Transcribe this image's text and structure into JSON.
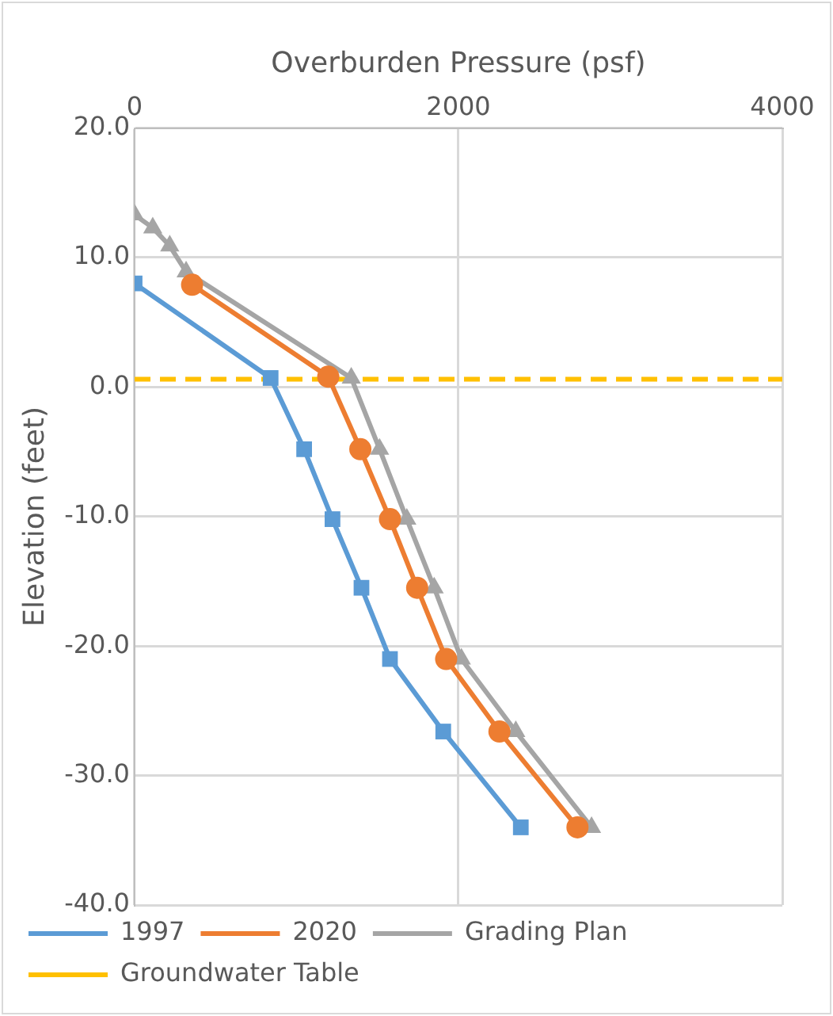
{
  "chart_data": {
    "type": "line",
    "xlabel": "Overburden Pressure (psf)",
    "ylabel": "Elevation (feet)",
    "xlim": [
      0,
      4000
    ],
    "xticks": [
      0,
      2000,
      4000
    ],
    "ylim": [
      -40,
      20
    ],
    "yticks": [
      {
        "value": -40,
        "label": "-40.0"
      },
      {
        "value": -30,
        "label": "-30.0"
      },
      {
        "value": -20,
        "label": "-20.0"
      },
      {
        "value": -10,
        "label": "-10.0"
      },
      {
        "value": 0,
        "label": "0.0"
      },
      {
        "value": 10,
        "label": "10.0"
      },
      {
        "value": 20,
        "label": "20.0"
      }
    ],
    "grid": true,
    "legend": "bottom",
    "line_style": "solid",
    "series": [
      {
        "name": "1997",
        "color": "#5b9bd5",
        "marker": "square",
        "x": [
          0,
          840,
          1047,
          1222,
          1401,
          1577,
          1906,
          2385
        ],
        "values": [
          8.0,
          0.7,
          -4.8,
          -10.2,
          -15.5,
          -21.0,
          -26.6,
          -34.0
        ]
      },
      {
        "name": "2020",
        "color": "#ed7d31",
        "marker": "circle",
        "x": [
          355,
          1196,
          1394,
          1577,
          1745,
          1924,
          2253,
          2735
        ],
        "values": [
          7.9,
          0.8,
          -4.8,
          -10.2,
          -15.5,
          -21.0,
          -26.6,
          -34.0
        ]
      },
      {
        "name": "Grading Plan",
        "color": "#a5a5a5",
        "marker": "triangle",
        "x": [
          0,
          112,
          217,
          318,
          1338,
          1513,
          1681,
          1850,
          2018,
          2354,
          2822
        ],
        "values": [
          13.3,
          12.3,
          10.9,
          8.9,
          0.7,
          -4.8,
          -10.2,
          -15.5,
          -21.0,
          -26.6,
          -34.0
        ]
      },
      {
        "name": "Groundwater Table",
        "color": "#ffc000",
        "marker": "none",
        "line_style": "dashed",
        "x": [
          0,
          4000
        ],
        "values": [
          0.6,
          0.6
        ]
      }
    ]
  }
}
